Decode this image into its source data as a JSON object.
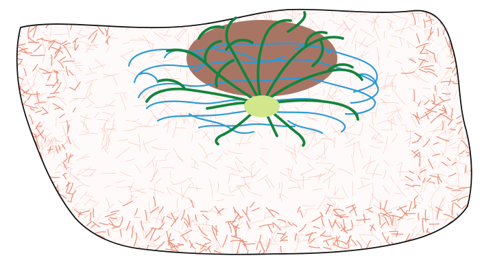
{
  "colors": {
    "background": "#ffffff",
    "tissue_fill": "#fffafa",
    "outline": "#111111",
    "fiber_fine": "#f4c0b2",
    "fiber_dense": "#e8866d",
    "core_mass": "#a87565",
    "blue_vessels": "#2a9ad8",
    "green_vessels": "#13843c",
    "center_node": "#d2e68c"
  },
  "elements": {
    "tissue": "tissue-section",
    "fibers": "fibrous-texture",
    "core": "core-mass",
    "blue_network": "blue-vessel-network",
    "green_network": "green-vessel-network",
    "node": "central-node"
  }
}
